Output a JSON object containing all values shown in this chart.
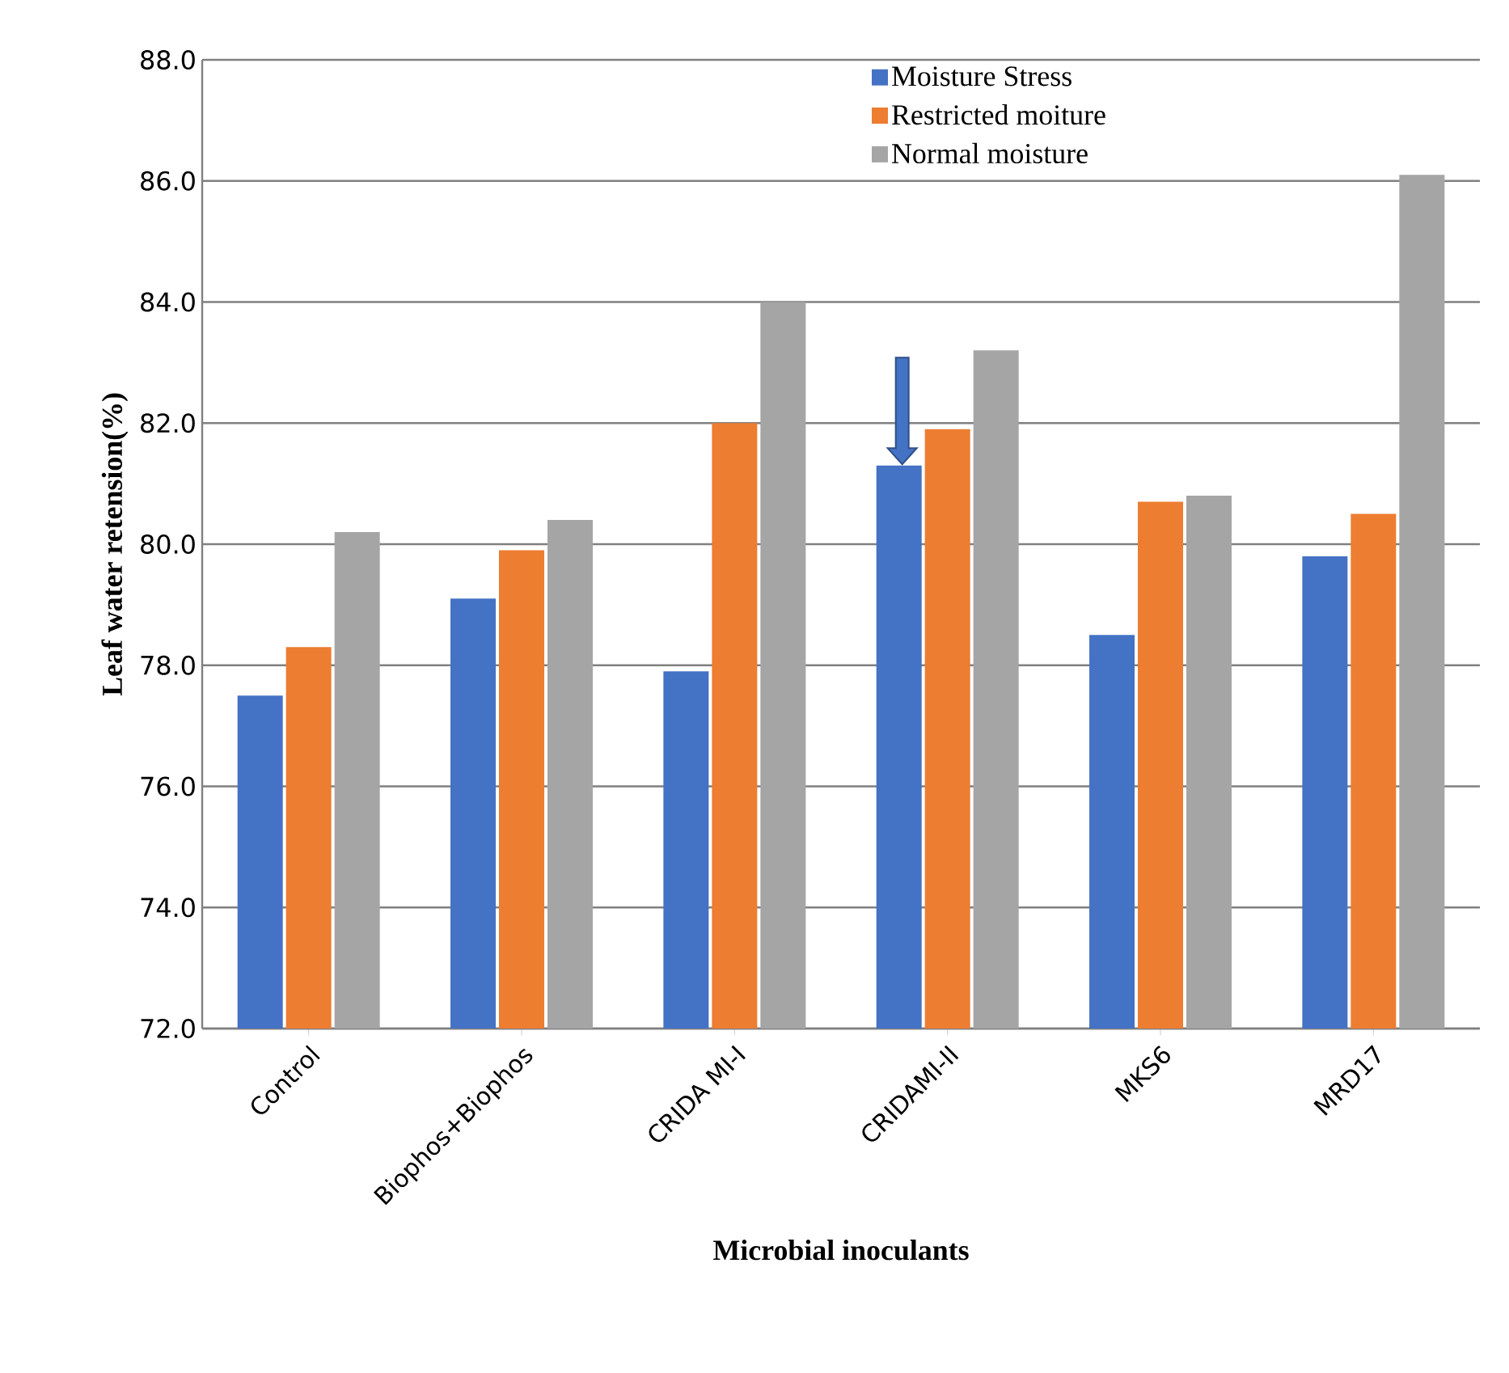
{
  "chart_data": {
    "type": "bar",
    "xlabel": "Microbial inoculants",
    "ylabel": "Leaf water retension(%)",
    "categories": [
      "Control",
      "Biophos+Biophos",
      "CRIDA MI-I",
      "CRIDAMI-II",
      "MKS6",
      "MRD17"
    ],
    "series": [
      {
        "name": "Moisture Stress",
        "color": "#4472c4",
        "values": [
          77.5,
          79.1,
          77.9,
          81.3,
          78.5,
          79.8
        ]
      },
      {
        "name": "Restricted moiture",
        "color": "#ed7d31",
        "values": [
          78.3,
          79.9,
          82.0,
          81.9,
          80.7,
          80.5
        ]
      },
      {
        "name": "Normal moisture",
        "color": "#a5a5a5",
        "values": [
          80.2,
          80.4,
          84.0,
          83.2,
          80.8,
          86.1
        ]
      }
    ],
    "ylim": [
      72,
      88
    ],
    "yticks": [
      {
        "value": 72,
        "label": "72.0"
      },
      {
        "value": 74,
        "label": "74.0"
      },
      {
        "value": 76,
        "label": "76.0"
      },
      {
        "value": 78,
        "label": "78.0"
      },
      {
        "value": 80,
        "label": "80.0"
      },
      {
        "value": 82,
        "label": "82.0"
      },
      {
        "value": 84,
        "label": "84.0"
      },
      {
        "value": 86,
        "label": "86.0"
      },
      {
        "value": 88,
        "label": "88.0"
      }
    ],
    "grid": "y",
    "legend": "top"
  }
}
